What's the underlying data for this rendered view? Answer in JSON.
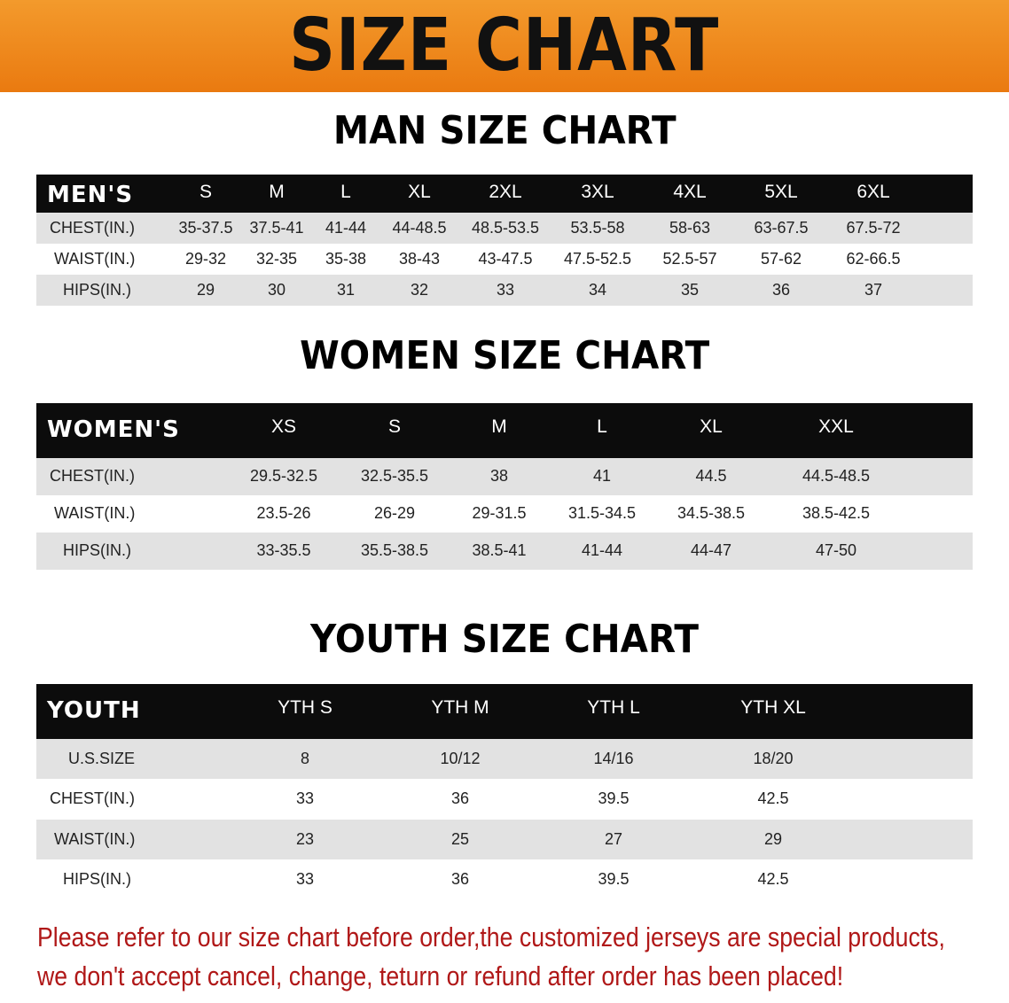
{
  "banner_title": "SIZE CHART",
  "men": {
    "title": "MAN SIZE CHART",
    "header": [
      "MEN'S",
      "S",
      "M",
      "L",
      "XL",
      "2XL",
      "3XL",
      "4XL",
      "5XL",
      "6XL"
    ],
    "rows": [
      [
        "CHEST(IN.)",
        "35-37.5",
        "37.5-41",
        "41-44",
        "44-48.5",
        "48.5-53.5",
        "53.5-58",
        "58-63",
        "63-67.5",
        "67.5-72"
      ],
      [
        "WAIST(IN.)",
        "29-32",
        "32-35",
        "35-38",
        "38-43",
        "43-47.5",
        "47.5-52.5",
        "52.5-57",
        "57-62",
        "62-66.5"
      ],
      [
        "HIPS(IN.)",
        "29",
        "30",
        "31",
        "32",
        "33",
        "34",
        "35",
        "36",
        "37"
      ]
    ]
  },
  "women": {
    "title": "WOMEN SIZE CHART",
    "header": [
      "WOMEN'S",
      "XS",
      "S",
      "M",
      "L",
      "XL",
      "XXL"
    ],
    "rows": [
      [
        "CHEST(IN.)",
        "29.5-32.5",
        "32.5-35.5",
        "38",
        "41",
        "44.5",
        "44.5-48.5"
      ],
      [
        "WAIST(IN.)",
        "23.5-26",
        "26-29",
        "29-31.5",
        "31.5-34.5",
        "34.5-38.5",
        "38.5-42.5"
      ],
      [
        "HIPS(IN.)",
        "33-35.5",
        "35.5-38.5",
        "38.5-41",
        "41-44",
        "44-47",
        "47-50"
      ]
    ]
  },
  "youth": {
    "title": "YOUTH SIZE CHART",
    "header": [
      "YOUTH",
      "YTH S",
      "YTH M",
      "YTH L",
      "YTH XL"
    ],
    "rows": [
      [
        "U.S.SIZE",
        "8",
        "10/12",
        "14/16",
        "18/20"
      ],
      [
        "CHEST(IN.)",
        "33",
        "36",
        "39.5",
        "42.5"
      ],
      [
        "WAIST(IN.)",
        "23",
        "25",
        "27",
        "29"
      ],
      [
        "HIPS(IN.)",
        "33",
        "36",
        "39.5",
        "42.5"
      ]
    ]
  },
  "note": {
    "line1": "Please refer to our size chart before order,the customized jerseys are special products,",
    "line2": "we don't accept cancel, change, teturn or refund after order has been placed!",
    "color": "#b01818"
  },
  "colors": {
    "banner": "#ee8a1c",
    "header_row": "#0c0c0c",
    "stripe": "#e2e2e2"
  }
}
